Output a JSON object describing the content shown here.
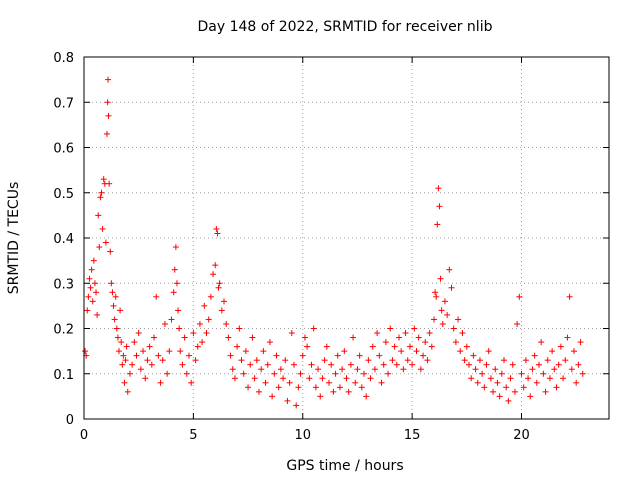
{
  "chart_data": {
    "type": "scatter",
    "title": "Day 148 of 2022, SRMTID for receiver nlib",
    "xlabel": "GPS time / hours",
    "ylabel": "SRMTID / TECUs",
    "xlim": [
      0,
      24
    ],
    "ylim": [
      0,
      0.8
    ],
    "xticks": [
      0,
      5,
      10,
      15,
      20
    ],
    "xtick_labels": [
      "0",
      "5",
      "10",
      "15",
      "20"
    ],
    "yticks": [
      0,
      0.1,
      0.2,
      0.3,
      0.4,
      0.5,
      0.6,
      0.7,
      0.8
    ],
    "ytick_labels": [
      "0",
      "0.1",
      "0.2",
      "0.3",
      "0.4",
      "0.5",
      "0.6",
      "0.7",
      "0.8"
    ],
    "grid": true,
    "marker": "+",
    "color": "#ff0000",
    "series": [
      {
        "name": "SRMTID",
        "points": [
          [
            0.05,
            0.15
          ],
          [
            0.1,
            0.14
          ],
          [
            0.15,
            0.24
          ],
          [
            0.2,
            0.27
          ],
          [
            0.25,
            0.31
          ],
          [
            0.3,
            0.29
          ],
          [
            0.35,
            0.33
          ],
          [
            0.4,
            0.26
          ],
          [
            0.45,
            0.35
          ],
          [
            0.5,
            0.3
          ],
          [
            0.55,
            0.28
          ],
          [
            0.6,
            0.23
          ],
          [
            0.65,
            0.45
          ],
          [
            0.7,
            0.38
          ],
          [
            0.75,
            0.49
          ],
          [
            0.8,
            0.5
          ],
          [
            0.85,
            0.42
          ],
          [
            0.9,
            0.53
          ],
          [
            0.95,
            0.52
          ],
          [
            1.0,
            0.39
          ],
          [
            1.05,
            0.63
          ],
          [
            1.08,
            0.7
          ],
          [
            1.1,
            0.75
          ],
          [
            1.12,
            0.67
          ],
          [
            1.15,
            0.52
          ],
          [
            1.2,
            0.37
          ],
          [
            1.25,
            0.3
          ],
          [
            1.3,
            0.28
          ],
          [
            1.35,
            0.25
          ],
          [
            1.4,
            0.22
          ],
          [
            1.45,
            0.27
          ],
          [
            1.5,
            0.2
          ],
          [
            1.55,
            0.18
          ],
          [
            1.6,
            0.15
          ],
          [
            1.65,
            0.24
          ],
          [
            1.7,
            0.17
          ],
          [
            1.75,
            0.12
          ],
          [
            1.8,
            0.14
          ],
          [
            1.85,
            0.08
          ],
          [
            1.9,
            0.13
          ],
          [
            1.95,
            0.16
          ],
          [
            2.0,
            0.06
          ],
          [
            2.1,
            0.1
          ],
          [
            2.2,
            0.12
          ],
          [
            2.3,
            0.17
          ],
          [
            2.4,
            0.14
          ],
          [
            2.5,
            0.19
          ],
          [
            2.6,
            0.11
          ],
          [
            2.7,
            0.15
          ],
          [
            2.8,
            0.09
          ],
          [
            2.9,
            0.13
          ],
          [
            3.0,
            0.16
          ],
          [
            3.1,
            0.12
          ],
          [
            3.2,
            0.18
          ],
          [
            3.3,
            0.27
          ],
          [
            3.4,
            0.14
          ],
          [
            3.5,
            0.08
          ],
          [
            3.6,
            0.13
          ],
          [
            3.7,
            0.21
          ],
          [
            3.8,
            0.1
          ],
          [
            3.9,
            0.15
          ],
          [
            4.0,
            0.22
          ],
          [
            4.1,
            0.28
          ],
          [
            4.15,
            0.33
          ],
          [
            4.2,
            0.38
          ],
          [
            4.25,
            0.3
          ],
          [
            4.3,
            0.24
          ],
          [
            4.35,
            0.2
          ],
          [
            4.4,
            0.15
          ],
          [
            4.5,
            0.12
          ],
          [
            4.6,
            0.18
          ],
          [
            4.7,
            0.1
          ],
          [
            4.8,
            0.14
          ],
          [
            4.9,
            0.08
          ],
          [
            5.0,
            0.19
          ],
          [
            5.1,
            0.13
          ],
          [
            5.2,
            0.16
          ],
          [
            5.3,
            0.21
          ],
          [
            5.4,
            0.17
          ],
          [
            5.5,
            0.25
          ],
          [
            5.6,
            0.19
          ],
          [
            5.7,
            0.22
          ],
          [
            5.8,
            0.27
          ],
          [
            5.9,
            0.32
          ],
          [
            6.0,
            0.34
          ],
          [
            6.05,
            0.42
          ],
          [
            6.1,
            0.41
          ],
          [
            6.15,
            0.29
          ],
          [
            6.2,
            0.3
          ],
          [
            6.3,
            0.24
          ],
          [
            6.4,
            0.26
          ],
          [
            6.5,
            0.21
          ],
          [
            6.6,
            0.18
          ],
          [
            6.7,
            0.14
          ],
          [
            6.8,
            0.11
          ],
          [
            6.9,
            0.09
          ],
          [
            7.0,
            0.16
          ],
          [
            7.1,
            0.2
          ],
          [
            7.2,
            0.13
          ],
          [
            7.3,
            0.1
          ],
          [
            7.4,
            0.15
          ],
          [
            7.5,
            0.07
          ],
          [
            7.6,
            0.12
          ],
          [
            7.7,
            0.18
          ],
          [
            7.8,
            0.09
          ],
          [
            7.9,
            0.13
          ],
          [
            8.0,
            0.06
          ],
          [
            8.1,
            0.11
          ],
          [
            8.2,
            0.15
          ],
          [
            8.3,
            0.08
          ],
          [
            8.4,
            0.12
          ],
          [
            8.5,
            0.17
          ],
          [
            8.6,
            0.05
          ],
          [
            8.7,
            0.1
          ],
          [
            8.8,
            0.14
          ],
          [
            8.9,
            0.07
          ],
          [
            9.0,
            0.11
          ],
          [
            9.1,
            0.09
          ],
          [
            9.2,
            0.13
          ],
          [
            9.3,
            0.04
          ],
          [
            9.4,
            0.08
          ],
          [
            9.5,
            0.19
          ],
          [
            9.6,
            0.12
          ],
          [
            9.7,
            0.03
          ],
          [
            9.8,
            0.07
          ],
          [
            9.9,
            0.1
          ],
          [
            10.0,
            0.14
          ],
          [
            10.1,
            0.18
          ],
          [
            10.2,
            0.16
          ],
          [
            10.3,
            0.09
          ],
          [
            10.4,
            0.12
          ],
          [
            10.5,
            0.2
          ],
          [
            10.6,
            0.07
          ],
          [
            10.7,
            0.11
          ],
          [
            10.8,
            0.05
          ],
          [
            10.9,
            0.09
          ],
          [
            11.0,
            0.13
          ],
          [
            11.1,
            0.16
          ],
          [
            11.2,
            0.08
          ],
          [
            11.3,
            0.12
          ],
          [
            11.4,
            0.06
          ],
          [
            11.5,
            0.1
          ],
          [
            11.6,
            0.14
          ],
          [
            11.7,
            0.07
          ],
          [
            11.8,
            0.11
          ],
          [
            11.9,
            0.15
          ],
          [
            12.0,
            0.09
          ],
          [
            12.1,
            0.06
          ],
          [
            12.2,
            0.12
          ],
          [
            12.3,
            0.18
          ],
          [
            12.4,
            0.08
          ],
          [
            12.5,
            0.11
          ],
          [
            12.6,
            0.14
          ],
          [
            12.7,
            0.07
          ],
          [
            12.8,
            0.1
          ],
          [
            12.9,
            0.05
          ],
          [
            13.0,
            0.13
          ],
          [
            13.1,
            0.09
          ],
          [
            13.2,
            0.16
          ],
          [
            13.3,
            0.11
          ],
          [
            13.4,
            0.19
          ],
          [
            13.5,
            0.14
          ],
          [
            13.6,
            0.08
          ],
          [
            13.7,
            0.12
          ],
          [
            13.8,
            0.17
          ],
          [
            13.9,
            0.1
          ],
          [
            14.0,
            0.2
          ],
          [
            14.1,
            0.13
          ],
          [
            14.2,
            0.16
          ],
          [
            14.3,
            0.12
          ],
          [
            14.4,
            0.18
          ],
          [
            14.5,
            0.15
          ],
          [
            14.6,
            0.11
          ],
          [
            14.7,
            0.19
          ],
          [
            14.8,
            0.13
          ],
          [
            14.9,
            0.16
          ],
          [
            15.0,
            0.12
          ],
          [
            15.1,
            0.2
          ],
          [
            15.2,
            0.15
          ],
          [
            15.3,
            0.18
          ],
          [
            15.4,
            0.11
          ],
          [
            15.5,
            0.14
          ],
          [
            15.6,
            0.17
          ],
          [
            15.7,
            0.13
          ],
          [
            15.8,
            0.19
          ],
          [
            15.9,
            0.16
          ],
          [
            16.0,
            0.22
          ],
          [
            16.05,
            0.28
          ],
          [
            16.1,
            0.27
          ],
          [
            16.15,
            0.43
          ],
          [
            16.2,
            0.51
          ],
          [
            16.25,
            0.47
          ],
          [
            16.3,
            0.31
          ],
          [
            16.35,
            0.24
          ],
          [
            16.4,
            0.21
          ],
          [
            16.5,
            0.26
          ],
          [
            16.6,
            0.23
          ],
          [
            16.7,
            0.33
          ],
          [
            16.8,
            0.29
          ],
          [
            16.9,
            0.2
          ],
          [
            17.0,
            0.17
          ],
          [
            17.1,
            0.22
          ],
          [
            17.2,
            0.15
          ],
          [
            17.3,
            0.19
          ],
          [
            17.4,
            0.13
          ],
          [
            17.5,
            0.16
          ],
          [
            17.6,
            0.12
          ],
          [
            17.7,
            0.09
          ],
          [
            17.8,
            0.14
          ],
          [
            17.9,
            0.11
          ],
          [
            18.0,
            0.08
          ],
          [
            18.1,
            0.13
          ],
          [
            18.2,
            0.1
          ],
          [
            18.3,
            0.07
          ],
          [
            18.4,
            0.12
          ],
          [
            18.5,
            0.15
          ],
          [
            18.6,
            0.09
          ],
          [
            18.7,
            0.06
          ],
          [
            18.8,
            0.11
          ],
          [
            18.9,
            0.08
          ],
          [
            19.0,
            0.05
          ],
          [
            19.1,
            0.1
          ],
          [
            19.2,
            0.13
          ],
          [
            19.3,
            0.07
          ],
          [
            19.4,
            0.04
          ],
          [
            19.5,
            0.09
          ],
          [
            19.6,
            0.12
          ],
          [
            19.7,
            0.06
          ],
          [
            19.8,
            0.21
          ],
          [
            19.9,
            0.27
          ],
          [
            20.0,
            0.1
          ],
          [
            20.1,
            0.07
          ],
          [
            20.2,
            0.13
          ],
          [
            20.3,
            0.09
          ],
          [
            20.4,
            0.05
          ],
          [
            20.5,
            0.11
          ],
          [
            20.6,
            0.14
          ],
          [
            20.7,
            0.08
          ],
          [
            20.8,
            0.12
          ],
          [
            20.9,
            0.17
          ],
          [
            21.0,
            0.1
          ],
          [
            21.1,
            0.06
          ],
          [
            21.2,
            0.13
          ],
          [
            21.3,
            0.09
          ],
          [
            21.4,
            0.15
          ],
          [
            21.5,
            0.11
          ],
          [
            21.6,
            0.07
          ],
          [
            21.7,
            0.12
          ],
          [
            21.8,
            0.16
          ],
          [
            21.9,
            0.09
          ],
          [
            22.0,
            0.13
          ],
          [
            22.1,
            0.18
          ],
          [
            22.2,
            0.27
          ],
          [
            22.3,
            0.11
          ],
          [
            22.4,
            0.15
          ],
          [
            22.5,
            0.08
          ],
          [
            22.6,
            0.12
          ],
          [
            22.7,
            0.17
          ],
          [
            22.8,
            0.1
          ]
        ]
      }
    ]
  }
}
